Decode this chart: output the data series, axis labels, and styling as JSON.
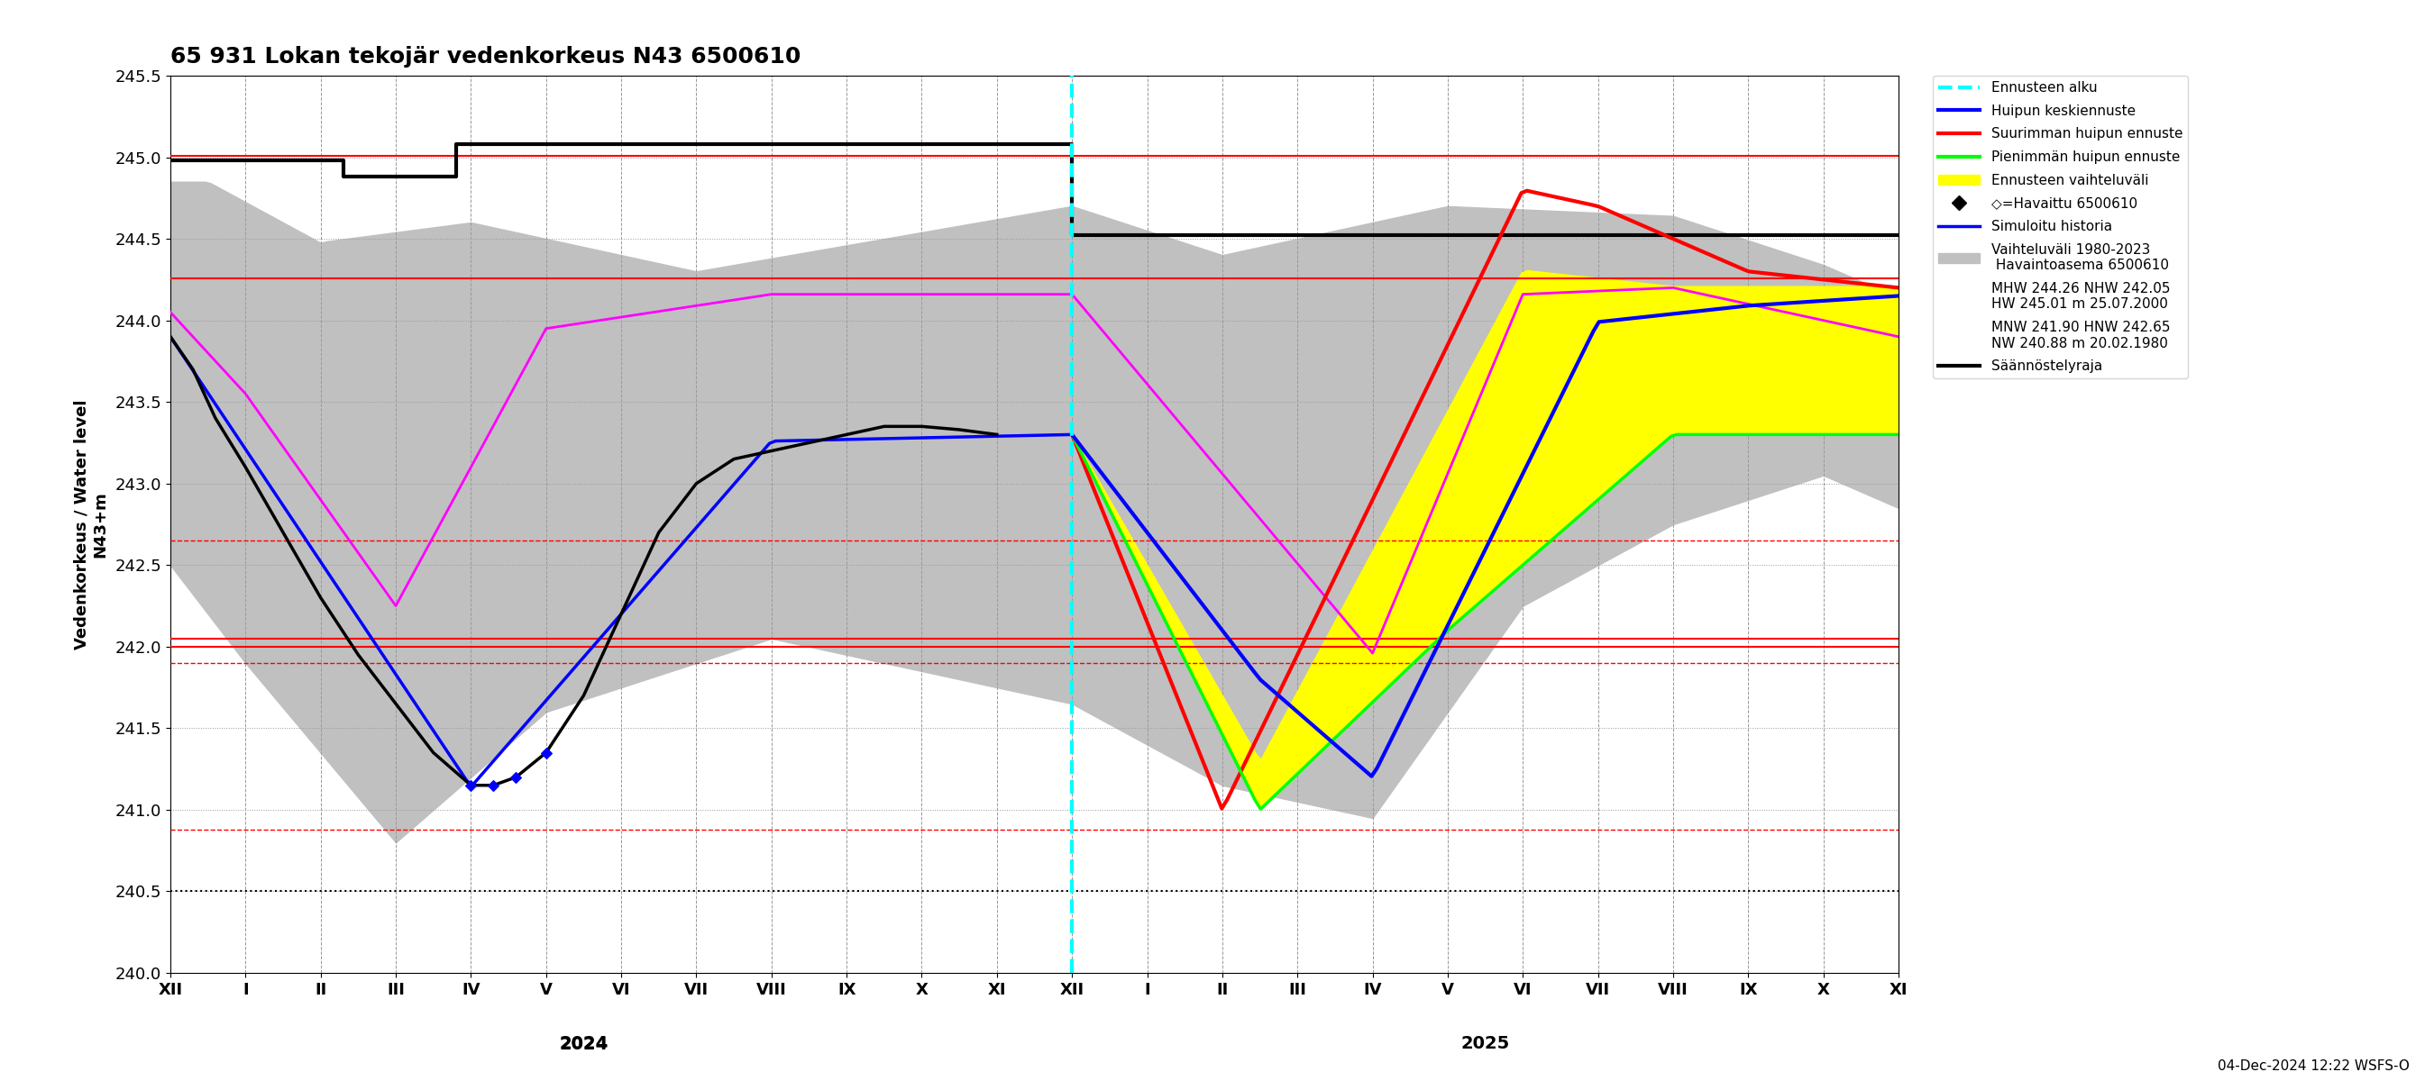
{
  "title": "65 931 Lokan tekojär vedenkorkeus N43 6500610",
  "ylabel": "Vedenkorkeus / Water level\nN43+m",
  "ylim": [
    240.0,
    245.5
  ],
  "yticks": [
    240.0,
    240.5,
    241.0,
    241.5,
    242.0,
    242.5,
    243.0,
    243.5,
    244.0,
    244.5,
    245.0,
    245.5
  ],
  "footer": "04-Dec-2024 12:22 WSFS-O",
  "horizontal_lines": {
    "hw": {
      "y": 245.01,
      "color": "red",
      "lw": 1.5,
      "ls": "solid"
    },
    "mhw": {
      "y": 244.26,
      "color": "red",
      "lw": 1.5,
      "ls": "solid"
    },
    "hnw": {
      "y": 242.65,
      "color": "red",
      "lw": 1.0,
      "ls": "dashed"
    },
    "nhw": {
      "y": 242.05,
      "color": "red",
      "lw": 1.5,
      "ls": "solid"
    },
    "median": {
      "y": 242.0,
      "color": "red",
      "lw": 1.5,
      "ls": "solid"
    },
    "mnw": {
      "y": 241.9,
      "color": "red",
      "lw": 1.0,
      "ls": "dashed"
    },
    "nw": {
      "y": 240.88,
      "color": "red",
      "lw": 1.0,
      "ls": "dashed"
    },
    "reg_lower": {
      "y": 240.5,
      "color": "black",
      "lw": 1.5,
      "ls": "dotted"
    }
  },
  "bg_color": "white",
  "grid_color": "#999999"
}
